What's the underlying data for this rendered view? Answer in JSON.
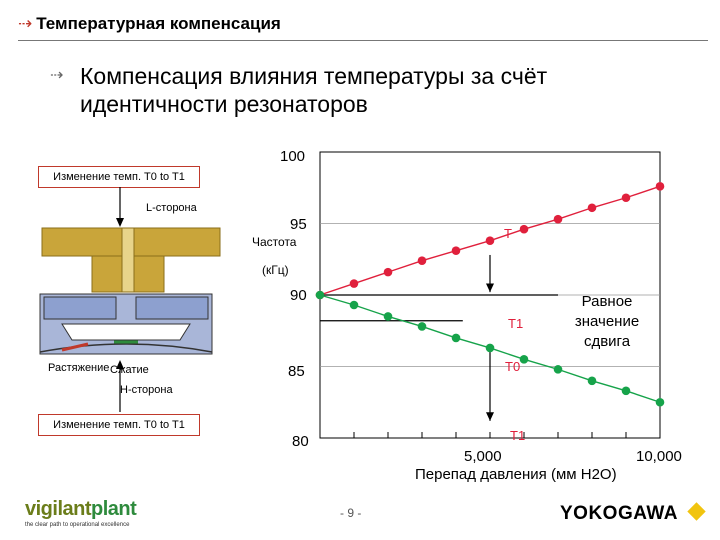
{
  "header": {
    "title": "Температурная компенсация",
    "subtitle": "Компенсация влияния температуры за счёт идентичности резонаторов"
  },
  "diagram": {
    "top_box": "Изменение темп. T0 to T1",
    "l_side": "L-сторона",
    "tension": "Растяжение",
    "compression": "Сжатие",
    "h_side": "H-сторона",
    "bottom_box": "Изменение темп. T0 to T1"
  },
  "chart_data": {
    "type": "line",
    "ylabel": "Частота",
    "ylabel_unit": "(кГц)",
    "xlabel": "Перепад давления (мм H2O)",
    "ylim": [
      80,
      100
    ],
    "xlim": [
      0,
      10000
    ],
    "ytick_labels": [
      "100",
      "95",
      "90",
      "85",
      "80"
    ],
    "xtick_labels": [
      "5,000",
      "10,000"
    ],
    "series": [
      {
        "name": "T",
        "color": "#e0203c",
        "x": [
          0,
          1000,
          2000,
          3000,
          4000,
          5000,
          6000,
          7000,
          8000,
          9000,
          10000
        ],
        "y": [
          90.0,
          90.8,
          91.6,
          92.4,
          93.1,
          93.8,
          94.6,
          95.3,
          96.1,
          96.8,
          97.6
        ]
      },
      {
        "name": "T",
        "color": "#16a34a",
        "x": [
          0,
          1000,
          2000,
          3000,
          4000,
          5000,
          6000,
          7000,
          8000,
          9000,
          10000
        ],
        "y": [
          90.0,
          89.3,
          88.5,
          87.8,
          87.0,
          86.3,
          85.5,
          84.8,
          84.0,
          83.3,
          82.5
        ]
      }
    ],
    "annotations": {
      "t_top": "T",
      "t1_mid": "T1",
      "t0": "T0",
      "t1_bottom": "T1",
      "equal_shift": [
        "Равное",
        "значение",
        "сдвига"
      ]
    }
  },
  "footer": {
    "logo_v": "vigilant",
    "logo_p": "plant",
    "tagline": "the clear path to operational excellence",
    "page": "- 9 -",
    "brand": "YOKOGAWA",
    "brand_color": "#f1c40f"
  }
}
